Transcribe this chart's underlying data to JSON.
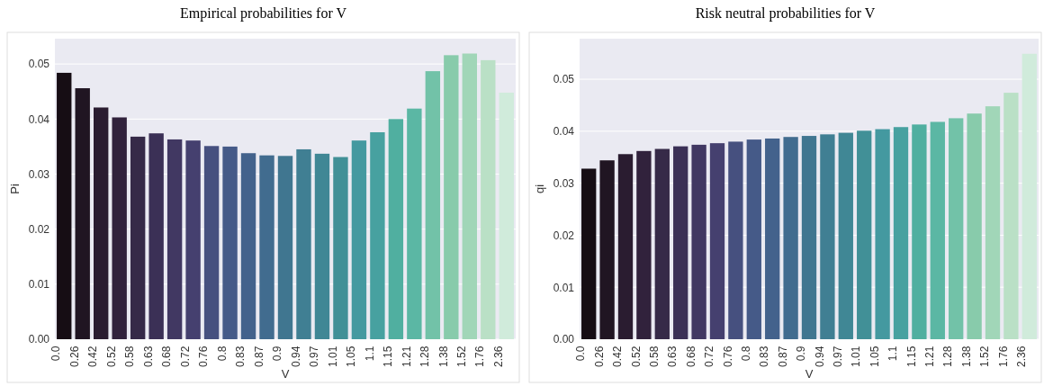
{
  "chart_data": [
    {
      "type": "bar",
      "title": "Empirical probabilities for V",
      "xlabel": "V",
      "ylabel": "Pi",
      "categories": [
        "0.0",
        "0.26",
        "0.42",
        "0.52",
        "0.58",
        "0.63",
        "0.68",
        "0.72",
        "0.76",
        "0.8",
        "0.83",
        "0.87",
        "0.9",
        "0.94",
        "0.97",
        "1.01",
        "1.05",
        "1.1",
        "1.15",
        "1.21",
        "1.28",
        "1.38",
        "1.52",
        "1.76",
        "2.36"
      ],
      "values": [
        0.0484,
        0.0456,
        0.0421,
        0.0403,
        0.0368,
        0.0374,
        0.0363,
        0.0361,
        0.0351,
        0.035,
        0.0338,
        0.0334,
        0.0333,
        0.0345,
        0.0337,
        0.0331,
        0.0361,
        0.0376,
        0.04,
        0.0419,
        0.0487,
        0.0516,
        0.0519,
        0.0507,
        0.0448
      ],
      "colors": [
        "#160d14",
        "#201522",
        "#2a1c30",
        "#31223c",
        "#362a48",
        "#3b3056",
        "#413862",
        "#45406f",
        "#46507f",
        "#455a88",
        "#43628c",
        "#416c8f",
        "#407690",
        "#407f93",
        "#408795",
        "#419097",
        "#4499a0",
        "#47a1a0",
        "#50afa0",
        "#5bb7a4",
        "#72c2a8",
        "#88cbab",
        "#a1d6b8",
        "#bae0c6",
        "#d0ebdb"
      ],
      "ylim": [
        0,
        0.0546
      ],
      "yticks": [
        {
          "value": 0,
          "label": "0.00"
        },
        {
          "value": 0.01,
          "label": "0.01"
        },
        {
          "value": 0.02,
          "label": "0.02"
        },
        {
          "value": 0.03,
          "label": "0.03"
        },
        {
          "value": 0.04,
          "label": "0.04"
        },
        {
          "value": 0.05,
          "label": "0.05"
        }
      ],
      "grid": "y"
    },
    {
      "type": "bar",
      "title": "Risk neutral probabilities for V",
      "xlabel": "V",
      "ylabel": "qi",
      "categories": [
        "0.0",
        "0.26",
        "0.42",
        "0.52",
        "0.58",
        "0.63",
        "0.68",
        "0.72",
        "0.76",
        "0.8",
        "0.83",
        "0.87",
        "0.9",
        "0.94",
        "0.97",
        "1.01",
        "1.05",
        "1.1",
        "1.15",
        "1.21",
        "1.28",
        "1.38",
        "1.52",
        "1.76",
        "2.36"
      ],
      "values": [
        0.0328,
        0.0344,
        0.0356,
        0.0362,
        0.0366,
        0.0371,
        0.0374,
        0.0377,
        0.038,
        0.0384,
        0.0386,
        0.0389,
        0.0391,
        0.0394,
        0.0397,
        0.0401,
        0.0404,
        0.0408,
        0.0413,
        0.0418,
        0.0425,
        0.0434,
        0.0448,
        0.0474,
        0.0549
      ],
      "colors": [
        "#160d14",
        "#201522",
        "#2a1c30",
        "#31223c",
        "#362a48",
        "#3b3056",
        "#413862",
        "#45406f",
        "#46507f",
        "#455a88",
        "#43628c",
        "#416c8f",
        "#407690",
        "#407f93",
        "#408795",
        "#419097",
        "#4499a0",
        "#47a1a0",
        "#50afa0",
        "#5bb7a4",
        "#72c2a8",
        "#88cbab",
        "#a1d6b8",
        "#bae0c6",
        "#d0ebdb"
      ],
      "ylim": [
        0,
        0.0578
      ],
      "yticks": [
        {
          "value": 0,
          "label": "0.00"
        },
        {
          "value": 0.01,
          "label": "0.01"
        },
        {
          "value": 0.02,
          "label": "0.02"
        },
        {
          "value": 0.03,
          "label": "0.03"
        },
        {
          "value": 0.04,
          "label": "0.04"
        },
        {
          "value": 0.05,
          "label": "0.05"
        }
      ],
      "grid": "y"
    }
  ]
}
